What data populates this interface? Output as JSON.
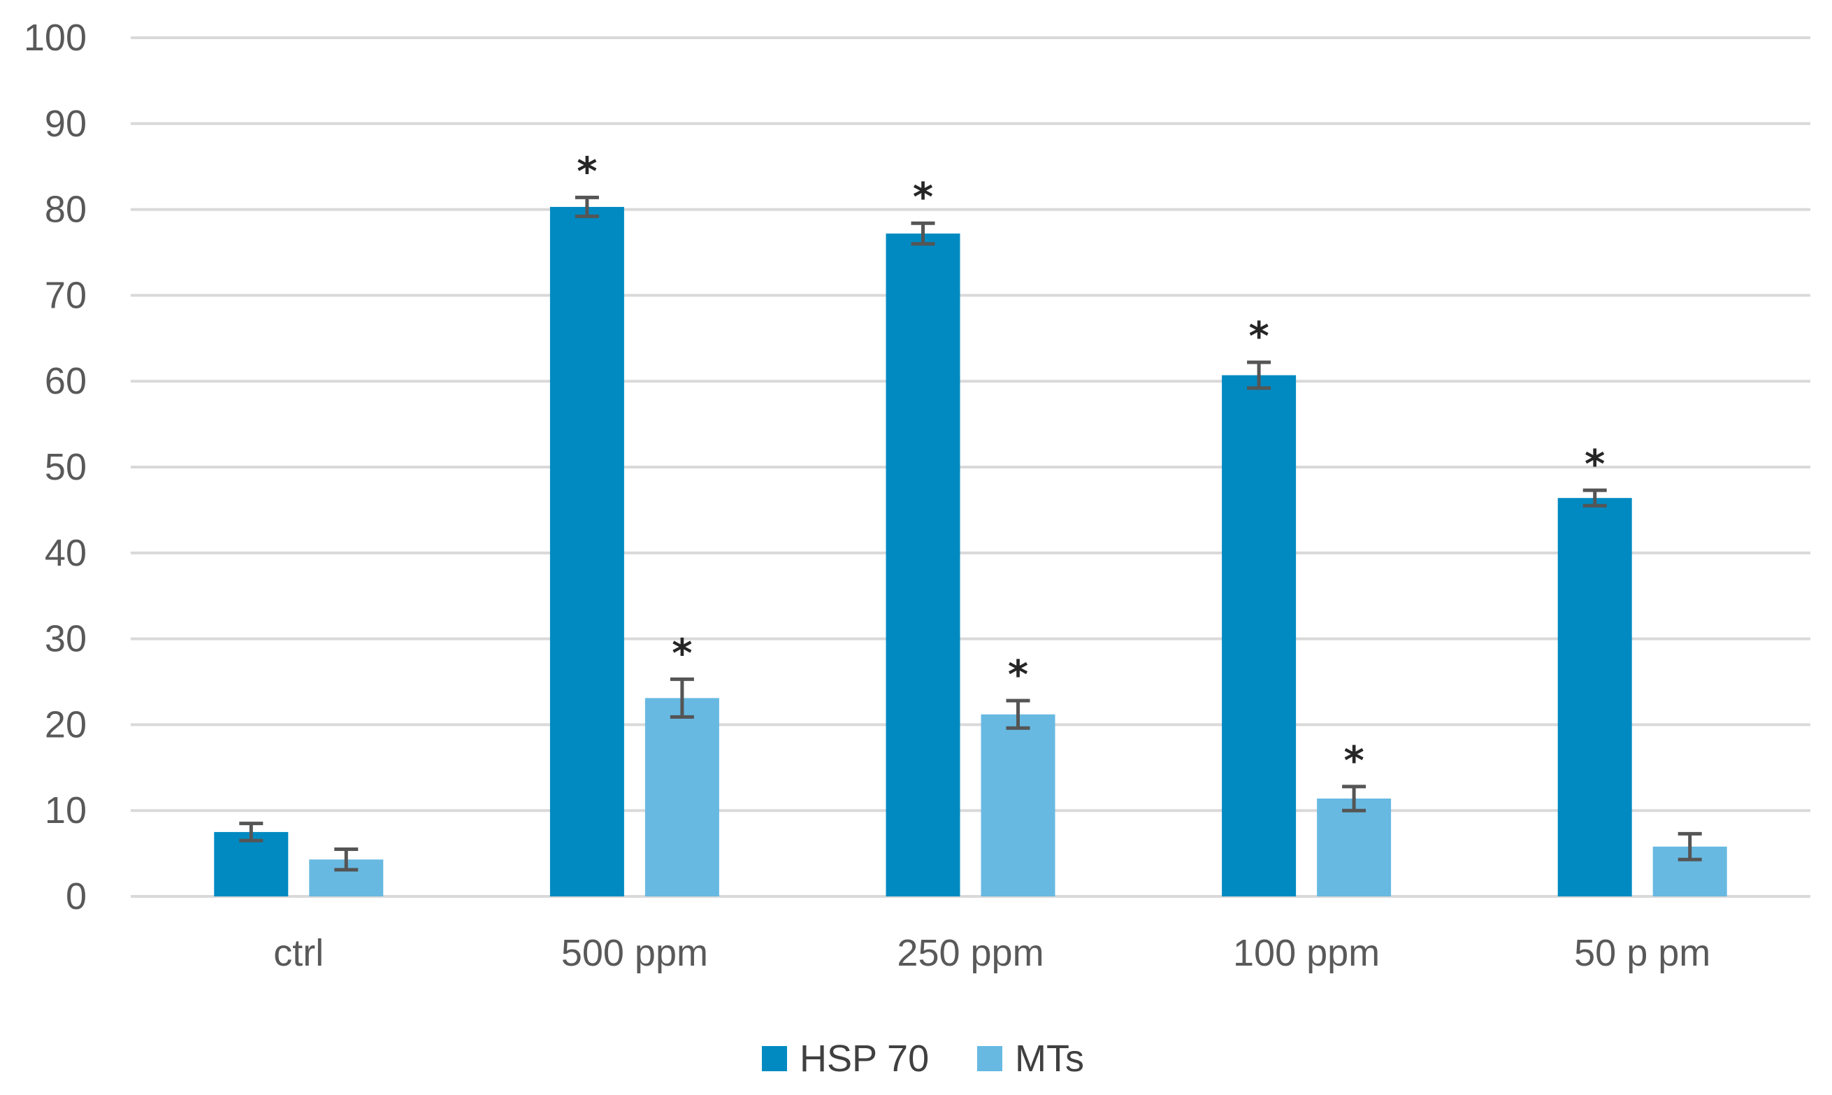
{
  "chart_data": {
    "type": "bar",
    "categories": [
      "ctrl",
      "500 ppm",
      "250 ppm",
      "100 ppm",
      "50 p pm"
    ],
    "series": [
      {
        "name": "HSP 70",
        "color": "#008AC1",
        "values": [
          7.5,
          80.3,
          77.2,
          60.7,
          46.4
        ],
        "errors": [
          1.0,
          1.1,
          1.2,
          1.5,
          0.9
        ],
        "significance": [
          "",
          "*",
          "*",
          "*",
          "*"
        ]
      },
      {
        "name": "MTs",
        "color": "#67B9E2",
        "values": [
          4.3,
          23.1,
          21.2,
          11.4,
          5.8
        ],
        "errors": [
          1.2,
          2.2,
          1.6,
          1.4,
          1.5
        ],
        "significance": [
          "",
          "*",
          "*",
          "*",
          ""
        ]
      }
    ],
    "ylim": [
      0,
      100
    ],
    "yticks": [
      0,
      10,
      20,
      30,
      40,
      50,
      60,
      70,
      80,
      90,
      100
    ],
    "grid": true,
    "legend_position": "bottom",
    "title": "",
    "xlabel": "",
    "ylabel": ""
  }
}
